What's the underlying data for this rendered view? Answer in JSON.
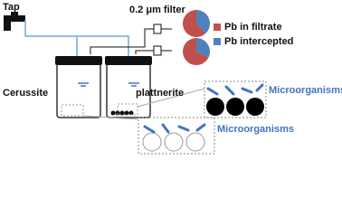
{
  "labels": {
    "tap": "Tap",
    "filter": "0.2 μm filter",
    "cerussite": "Cerussite",
    "plattnerite": "plattnerite",
    "micro_top": "Microorganisms",
    "micro_bottom": "Microorganisms"
  },
  "legend": [
    {
      "name": "Pb in filtrate",
      "color": "#c0504d"
    },
    {
      "name": "Pb intercepted",
      "color": "#4f81bd"
    }
  ],
  "pies": [
    {
      "values": [
        62,
        38
      ]
    },
    {
      "values": [
        68,
        32
      ]
    }
  ]
}
